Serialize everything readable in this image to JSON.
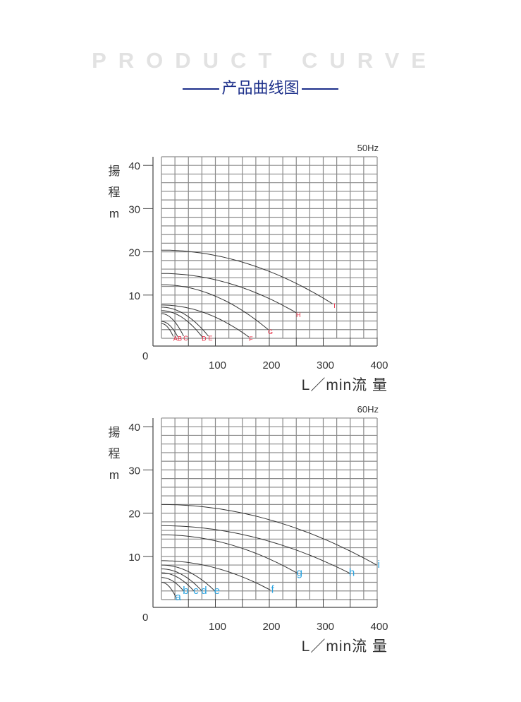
{
  "header": {
    "title_en": "PRODUCT CURVE",
    "title_cn": "产品曲线图"
  },
  "colors": {
    "title_en": "#e2e2e2",
    "title_cn": "#1c2f8a",
    "grid": "#8a8a8a",
    "curve": "#333333",
    "label_50hz": "#e8243c",
    "label_60hz": "#2aa3e0"
  },
  "chart_data": [
    {
      "type": "line",
      "frequency_label": "50Hz",
      "ylabel_chars": [
        "揚",
        "程",
        "m"
      ],
      "xlabel": "L／min流 量",
      "xlim": [
        0,
        400
      ],
      "ylim": [
        0,
        42
      ],
      "xticks": [
        100,
        200,
        300,
        400
      ],
      "yticks": [
        10,
        20,
        30,
        40
      ],
      "origin_label": "0",
      "grid": true,
      "series": [
        {
          "name": "A",
          "points": [
            [
              0,
              3.4
            ],
            [
              22,
              0.4
            ]
          ]
        },
        {
          "name": "B",
          "points": [
            [
              0,
              3.9
            ],
            [
              30,
              0.4
            ]
          ]
        },
        {
          "name": "C",
          "points": [
            [
              0,
              5.7
            ],
            [
              41,
              0.5
            ]
          ]
        },
        {
          "name": "D",
          "points": [
            [
              0,
              6.4
            ],
            [
              75,
              0.4
            ]
          ]
        },
        {
          "name": "E",
          "points": [
            [
              0,
              7.2
            ],
            [
              87,
              0.5
            ]
          ]
        },
        {
          "name": "F",
          "points": [
            [
              0,
              7.7
            ],
            [
              162,
              0.3
            ]
          ]
        },
        {
          "name": "G",
          "points": [
            [
              0,
              12.4
            ],
            [
              198,
              2.0
            ]
          ]
        },
        {
          "name": "H",
          "points": [
            [
              0,
              15.0
            ],
            [
              250,
              5.9
            ]
          ]
        },
        {
          "name": "I",
          "points": [
            [
              0,
              20.4
            ],
            [
              317,
              8.0
            ]
          ]
        }
      ]
    },
    {
      "type": "line",
      "frequency_label": "60Hz",
      "ylabel_chars": [
        "揚",
        "程",
        "m"
      ],
      "xlabel": "L／min流 量",
      "xlim": [
        0,
        400
      ],
      "ylim": [
        0,
        42
      ],
      "xticks": [
        100,
        200,
        300,
        400
      ],
      "yticks": [
        10,
        20,
        30,
        40
      ],
      "origin_label": "0",
      "grid": true,
      "series": [
        {
          "name": "a",
          "points": [
            [
              0,
              4.0
            ],
            [
              27,
              0.5
            ]
          ]
        },
        {
          "name": "b",
          "points": [
            [
              0,
              5.1
            ],
            [
              41,
              2.0
            ]
          ]
        },
        {
          "name": "c",
          "points": [
            [
              0,
              6.2
            ],
            [
              60,
              2.0
            ]
          ]
        },
        {
          "name": "d",
          "points": [
            [
              0,
              7.1
            ],
            [
              75,
              2.0
            ]
          ]
        },
        {
          "name": "e",
          "points": [
            [
              0,
              8.0
            ],
            [
              99,
              2.0
            ]
          ]
        },
        {
          "name": "f",
          "points": [
            [
              0,
              9.0
            ],
            [
              202,
              2.2
            ]
          ]
        },
        {
          "name": "g",
          "points": [
            [
              0,
              15.0
            ],
            [
              252,
              6.1
            ]
          ]
        },
        {
          "name": "h",
          "points": [
            [
              0,
              17.1
            ],
            [
              349,
              6.1
            ]
          ]
        },
        {
          "name": "i",
          "points": [
            [
              0,
              22.0
            ],
            [
              399,
              8.0
            ]
          ]
        }
      ]
    }
  ]
}
